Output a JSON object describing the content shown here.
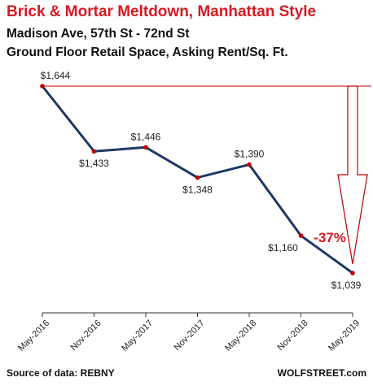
{
  "title": "Brick & Mortar Meltdown, Manhattan Style",
  "subtitle_line1": "Madison Ave, 57th St - 72nd St",
  "subtitle_line2": "Ground Floor Retail Space, Asking Rent/Sq. Ft.",
  "source": "Source of data: REBNY",
  "credit": "WOLFSTREET.com",
  "colors": {
    "line": "#1f3864",
    "marker": "#c00000",
    "title": "#d71920",
    "annotation": "#d71920",
    "arrow": "#c00000"
  },
  "annotation": {
    "text": "-37%"
  },
  "chart_data": {
    "type": "line",
    "categories": [
      "May-2016",
      "Nov-2016",
      "May-2017",
      "Nov-2017",
      "May-2018",
      "Nov-2018",
      "May-2019"
    ],
    "values": [
      1644,
      1433,
      1446,
      1348,
      1390,
      1160,
      1039
    ],
    "data_labels": [
      "$1,644",
      "$1,433",
      "$1,446",
      "$1,348",
      "$1,390",
      "$1,160",
      "$1,039"
    ],
    "title": "Brick & Mortar Meltdown, Manhattan Style",
    "xlabel": "",
    "ylabel": "",
    "ylim": [
      950,
      1700
    ],
    "grid": false,
    "legend": "none"
  }
}
